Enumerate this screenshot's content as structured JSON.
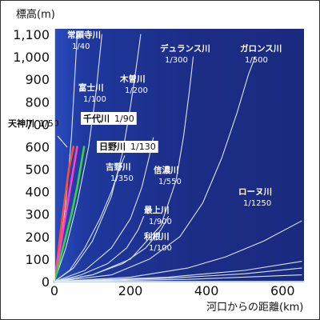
{
  "chart_data": {
    "type": "line",
    "ylabel": "標高(m)",
    "xlabel": "河口からの距離(km)",
    "xlim": [
      0,
      650
    ],
    "ylim": [
      0,
      1100
    ],
    "xticks": [
      0,
      200,
      400,
      600
    ],
    "xtick_labels": [
      "0",
      "200",
      "400",
      "600"
    ],
    "yticks": [
      0,
      100,
      200,
      300,
      400,
      500,
      600,
      700,
      800,
      900,
      1000,
      1100
    ],
    "ytick_labels": [
      "0",
      "100",
      "200",
      "300",
      "400",
      "500",
      "600",
      "700",
      "800",
      "900",
      "1,000",
      "1,100"
    ],
    "grid": false,
    "colors": {
      "background": "#1c2d86",
      "gradient_light": "#2a4cbf",
      "axis": "#ffffff",
      "river_line": "#d8e4f4"
    },
    "series": [
      {
        "name": "天神川",
        "gradient": "1/50",
        "color": "#ff5030",
        "highlight": true,
        "x": [
          0,
          8,
          15,
          22,
          30,
          38,
          45,
          50
        ],
        "y": [
          0,
          100,
          200,
          300,
          400,
          500,
          560,
          600
        ]
      },
      {
        "name": "千代川",
        "gradient": "1/90",
        "color": "#ff40c8",
        "highlight": true,
        "x": [
          0,
          10,
          20,
          30,
          40,
          50,
          60
        ],
        "y": [
          0,
          100,
          200,
          300,
          400,
          500,
          600
        ]
      },
      {
        "name": "日野川",
        "gradient": "1/130",
        "color": "#3ad040",
        "highlight": true,
        "x": [
          0,
          15,
          30,
          45,
          60,
          70,
          78
        ],
        "y": [
          0,
          100,
          200,
          300,
          420,
          520,
          600
        ]
      },
      {
        "name": "常願寺川",
        "gradient": "1/40",
        "color": "#d8e4f4",
        "highlight": false,
        "x": [
          0,
          15,
          30,
          45,
          55,
          60
        ],
        "y": [
          0,
          150,
          350,
          650,
          950,
          1100
        ]
      },
      {
        "name": "富士川",
        "gradient": "1/100",
        "color": "#d8e4f4",
        "highlight": false,
        "x": [
          0,
          30,
          60,
          90,
          110,
          125
        ],
        "y": [
          0,
          150,
          350,
          600,
          850,
          1100
        ]
      },
      {
        "name": "吉野川",
        "gradient": "1/350",
        "color": "#d8e4f4",
        "highlight": false,
        "x": [
          0,
          40,
          80,
          120,
          150,
          170,
          185
        ],
        "y": [
          0,
          50,
          150,
          280,
          400,
          500,
          560
        ]
      },
      {
        "name": "木曽川",
        "gradient": "1/200",
        "color": "#d8e4f4",
        "highlight": false,
        "x": [
          0,
          50,
          100,
          150,
          180,
          200,
          215,
          227
        ],
        "y": [
          0,
          60,
          180,
          380,
          580,
          780,
          950,
          1100
        ]
      },
      {
        "name": "信濃川",
        "gradient": "1/550",
        "color": "#d8e4f4",
        "highlight": false,
        "x": [
          0,
          80,
          150,
          200,
          230,
          250,
          260
        ],
        "y": [
          0,
          50,
          150,
          280,
          420,
          560,
          640
        ]
      },
      {
        "name": "最上川",
        "gradient": "1/900",
        "color": "#d8e4f4",
        "highlight": false,
        "x": [
          0,
          70,
          140,
          190,
          220,
          235
        ],
        "y": [
          0,
          30,
          80,
          150,
          230,
          290
        ]
      },
      {
        "name": "利根川",
        "gradient": "1/100",
        "color": "#d8e4f4",
        "highlight": false,
        "x": [
          0,
          100,
          180,
          240,
          280,
          300
        ],
        "y": [
          0,
          30,
          80,
          150,
          230,
          290
        ]
      },
      {
        "name": "デュランス川",
        "gradient": "1/300",
        "color": "#d8e4f4",
        "highlight": false,
        "x": [
          0,
          100,
          200,
          280,
          320,
          340,
          355,
          365
        ],
        "y": [
          0,
          30,
          100,
          250,
          450,
          650,
          850,
          1000
        ]
      },
      {
        "name": "ガロンス川",
        "gradient": "1/500",
        "color": "#d8e4f4",
        "highlight": false,
        "x": [
          0,
          150,
          250,
          330,
          390,
          440,
          480,
          510,
          528
        ],
        "y": [
          0,
          30,
          100,
          200,
          350,
          550,
          750,
          920,
          1000
        ]
      },
      {
        "name": "ローヌ川",
        "gradient": "1/1250",
        "color": "#d8e4f4",
        "highlight": false,
        "x": [
          0,
          200,
          350,
          450,
          550,
          650
        ],
        "y": [
          0,
          20,
          60,
          110,
          180,
          270
        ]
      },
      {
        "name": "",
        "gradient": "",
        "color": "#d8e4f4",
        "highlight": false,
        "x": [
          0,
          300,
          500,
          650
        ],
        "y": [
          0,
          20,
          50,
          90
        ]
      },
      {
        "name": "",
        "gradient": "",
        "color": "#d8e4f4",
        "highlight": false,
        "x": [
          0,
          300,
          500,
          650
        ],
        "y": [
          0,
          15,
          35,
          60
        ]
      },
      {
        "name": "",
        "gradient": "",
        "color": "#d8e4f4",
        "highlight": false,
        "x": [
          0,
          350,
          650
        ],
        "y": [
          0,
          10,
          30
        ]
      }
    ]
  }
}
